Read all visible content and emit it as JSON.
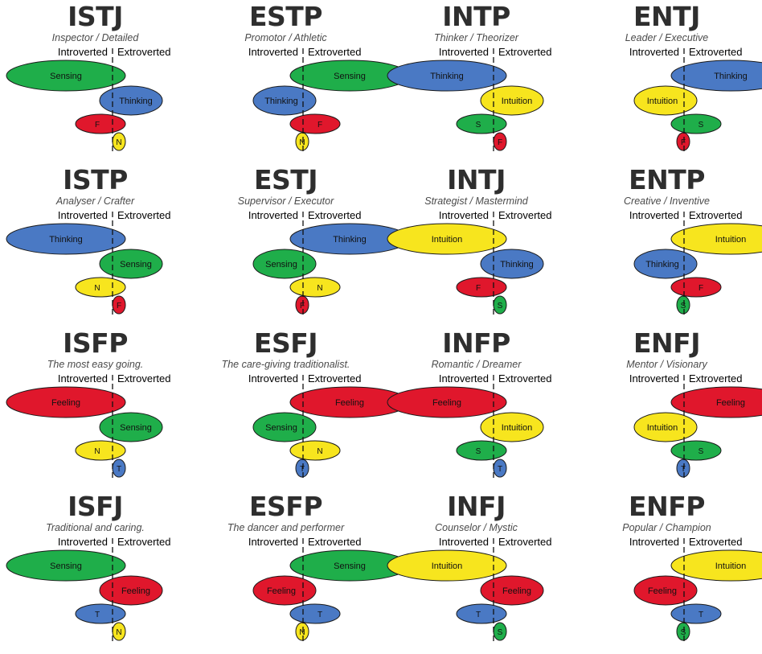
{
  "axis": {
    "introverted": "Introverted",
    "extroverted": "Extroverted"
  },
  "colors": {
    "sensing": "#1fae4a",
    "thinking": "#4a79c4",
    "feeling": "#e0172c",
    "intuition": "#f7e51e",
    "stroke": "#1a1a1a"
  },
  "types": [
    {
      "name": "ISTJ",
      "subtitle": "Inspector / Detailed",
      "functions": [
        {
          "fn": "sensing",
          "label": "Sensing",
          "side": "I"
        },
        {
          "fn": "thinking",
          "label": "Thinking",
          "side": "E"
        },
        {
          "fn": "feeling",
          "label": "F",
          "side": "I"
        },
        {
          "fn": "intuition",
          "label": "N",
          "side": "E"
        }
      ]
    },
    {
      "name": "ESTP",
      "subtitle": "Promotor / Athletic",
      "functions": [
        {
          "fn": "sensing",
          "label": "Sensing",
          "side": "E"
        },
        {
          "fn": "thinking",
          "label": "Thinking",
          "side": "I"
        },
        {
          "fn": "feeling",
          "label": "F",
          "side": "E"
        },
        {
          "fn": "intuition",
          "label": "N",
          "side": "I"
        }
      ]
    },
    {
      "name": "INTP",
      "subtitle": "Thinker / Theorizer",
      "functions": [
        {
          "fn": "thinking",
          "label": "Thinking",
          "side": "I"
        },
        {
          "fn": "intuition",
          "label": "Intuition",
          "side": "E"
        },
        {
          "fn": "sensing",
          "label": "S",
          "side": "I"
        },
        {
          "fn": "feeling",
          "label": "F",
          "side": "E"
        }
      ]
    },
    {
      "name": "ENTJ",
      "subtitle": "Leader / Executive",
      "functions": [
        {
          "fn": "thinking",
          "label": "Thinking",
          "side": "E"
        },
        {
          "fn": "intuition",
          "label": "Intuition",
          "side": "I"
        },
        {
          "fn": "sensing",
          "label": "S",
          "side": "E"
        },
        {
          "fn": "feeling",
          "label": "F",
          "side": "I"
        }
      ]
    },
    {
      "name": "ISTP",
      "subtitle": "Analyser / Crafter",
      "functions": [
        {
          "fn": "thinking",
          "label": "Thinking",
          "side": "I"
        },
        {
          "fn": "sensing",
          "label": "Sensing",
          "side": "E"
        },
        {
          "fn": "intuition",
          "label": "N",
          "side": "I"
        },
        {
          "fn": "feeling",
          "label": "F",
          "side": "E"
        }
      ]
    },
    {
      "name": "ESTJ",
      "subtitle": "Supervisor / Executor",
      "functions": [
        {
          "fn": "thinking",
          "label": "Thinking",
          "side": "E"
        },
        {
          "fn": "sensing",
          "label": "Sensing",
          "side": "I"
        },
        {
          "fn": "intuition",
          "label": "N",
          "side": "E"
        },
        {
          "fn": "feeling",
          "label": "F",
          "side": "I"
        }
      ]
    },
    {
      "name": "INTJ",
      "subtitle": "Strategist / Mastermind",
      "functions": [
        {
          "fn": "intuition",
          "label": "Intuition",
          "side": "I"
        },
        {
          "fn": "thinking",
          "label": "Thinking",
          "side": "E"
        },
        {
          "fn": "feeling",
          "label": "F",
          "side": "I"
        },
        {
          "fn": "sensing",
          "label": "S",
          "side": "E"
        }
      ]
    },
    {
      "name": "ENTP",
      "subtitle": "Creative / Inventive",
      "functions": [
        {
          "fn": "intuition",
          "label": "Intuition",
          "side": "E"
        },
        {
          "fn": "thinking",
          "label": "Thinking",
          "side": "I"
        },
        {
          "fn": "feeling",
          "label": "F",
          "side": "E"
        },
        {
          "fn": "sensing",
          "label": "S",
          "side": "I"
        }
      ]
    },
    {
      "name": "ISFP",
      "subtitle": "The most easy going.",
      "functions": [
        {
          "fn": "feeling",
          "label": "Feeling",
          "side": "I"
        },
        {
          "fn": "sensing",
          "label": "Sensing",
          "side": "E"
        },
        {
          "fn": "intuition",
          "label": "N",
          "side": "I"
        },
        {
          "fn": "thinking",
          "label": "T",
          "side": "E"
        }
      ]
    },
    {
      "name": "ESFJ",
      "subtitle": "The care-giving traditionalist.",
      "functions": [
        {
          "fn": "feeling",
          "label": "Feeling",
          "side": "E"
        },
        {
          "fn": "sensing",
          "label": "Sensing",
          "side": "I"
        },
        {
          "fn": "intuition",
          "label": "N",
          "side": "E"
        },
        {
          "fn": "thinking",
          "label": "T",
          "side": "I"
        }
      ]
    },
    {
      "name": "INFP",
      "subtitle": "Romantic / Dreamer",
      "functions": [
        {
          "fn": "feeling",
          "label": "Feeling",
          "side": "I"
        },
        {
          "fn": "intuition",
          "label": "Intuition",
          "side": "E"
        },
        {
          "fn": "sensing",
          "label": "S",
          "side": "I"
        },
        {
          "fn": "thinking",
          "label": "T",
          "side": "E"
        }
      ]
    },
    {
      "name": "ENFJ",
      "subtitle": "Mentor / Visionary",
      "functions": [
        {
          "fn": "feeling",
          "label": "Feeling",
          "side": "E"
        },
        {
          "fn": "intuition",
          "label": "Intuition",
          "side": "I"
        },
        {
          "fn": "sensing",
          "label": "S",
          "side": "E"
        },
        {
          "fn": "thinking",
          "label": "T",
          "side": "I"
        }
      ]
    },
    {
      "name": "ISFJ",
      "subtitle": "Traditional and caring.",
      "functions": [
        {
          "fn": "sensing",
          "label": "Sensing",
          "side": "I"
        },
        {
          "fn": "feeling",
          "label": "Feeling",
          "side": "E"
        },
        {
          "fn": "thinking",
          "label": "T",
          "side": "I"
        },
        {
          "fn": "intuition",
          "label": "N",
          "side": "E"
        }
      ]
    },
    {
      "name": "ESFP",
      "subtitle": "The dancer and performer",
      "functions": [
        {
          "fn": "sensing",
          "label": "Sensing",
          "side": "E"
        },
        {
          "fn": "feeling",
          "label": "Feeling",
          "side": "I"
        },
        {
          "fn": "thinking",
          "label": "T",
          "side": "E"
        },
        {
          "fn": "intuition",
          "label": "N",
          "side": "I"
        }
      ]
    },
    {
      "name": "INFJ",
      "subtitle": "Counselor / Mystic",
      "functions": [
        {
          "fn": "intuition",
          "label": "Intuition",
          "side": "I"
        },
        {
          "fn": "feeling",
          "label": "Feeling",
          "side": "E"
        },
        {
          "fn": "thinking",
          "label": "T",
          "side": "I"
        },
        {
          "fn": "sensing",
          "label": "S",
          "side": "E"
        }
      ]
    },
    {
      "name": "ENFP",
      "subtitle": "Popular / Champion",
      "functions": [
        {
          "fn": "intuition",
          "label": "Intuition",
          "side": "E"
        },
        {
          "fn": "feeling",
          "label": "Feeling",
          "side": "I"
        },
        {
          "fn": "thinking",
          "label": "T",
          "side": "E"
        },
        {
          "fn": "sensing",
          "label": "S",
          "side": "I"
        }
      ]
    }
  ]
}
